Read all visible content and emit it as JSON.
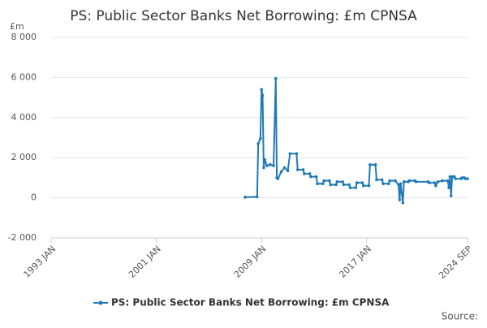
{
  "chart_data": {
    "type": "line",
    "title": "PS: Public Sector Banks Net Borrowing: £m CPNSA",
    "y_label": "£m",
    "source": "Source:",
    "x": [
      "2007 OCT",
      "2008 SEP",
      "2008 OCT",
      "2008 DEC",
      "2009 JAN",
      "2009 FEB",
      "2009 MAR",
      "2009 APR",
      "2009 JUN",
      "2009 SEP",
      "2009 DEC",
      "2010 FEB",
      "2010 MAR",
      "2010 APR",
      "2010 JUL",
      "2010 OCT",
      "2011 JAN",
      "2011 MAR",
      "2011 SEP",
      "2011 OCT",
      "2012 MAR",
      "2012 APR",
      "2012 SEP",
      "2012 OCT",
      "2013 MAR",
      "2013 APR",
      "2013 SEP",
      "2013 OCT",
      "2014 MAR",
      "2014 APR",
      "2014 SEP",
      "2014 OCT",
      "2015 MAR",
      "2015 APR",
      "2015 SEP",
      "2015 OCT",
      "2016 MAR",
      "2016 APR",
      "2016 SEP",
      "2016 OCT",
      "2017 MAR",
      "2017 APR",
      "2017 SEP",
      "2017 OCT",
      "2018 MAR",
      "2018 APR",
      "2018 SEP",
      "2018 OCT",
      "2019 MAR",
      "2019 JUN",
      "2019 JUL",
      "2019 AUG",
      "2019 OCT",
      "2019 NOV",
      "2020 MAR",
      "2020 APR",
      "2020 SEP",
      "2020 OCT",
      "2021 SEP",
      "2021 OCT",
      "2022 MAR",
      "2022 APR",
      "2022 JUN",
      "2022 OCT",
      "2023 MAR",
      "2023 APR",
      "2023 MAY",
      "2023 JUN",
      "2023 JUL",
      "2023 SEP",
      "2023 OCT",
      "2024 MAR",
      "2024 APR",
      "2024 JUN",
      "2024 JUL",
      "2024 SEP"
    ],
    "series": [
      {
        "name": "PS: Public Sector Banks Net Borrowing: £m CPNSA",
        "color": "#1f7ab8",
        "values": [
          30,
          50,
          2700,
          2950,
          5400,
          5100,
          1500,
          1900,
          1600,
          1650,
          1600,
          5950,
          1000,
          950,
          1300,
          1500,
          1350,
          2200,
          2200,
          1400,
          1400,
          1200,
          1200,
          1050,
          1050,
          700,
          700,
          850,
          850,
          650,
          650,
          800,
          800,
          650,
          650,
          500,
          500,
          750,
          750,
          600,
          600,
          1650,
          1650,
          900,
          900,
          700,
          700,
          850,
          850,
          650,
          -100,
          700,
          -250,
          800,
          800,
          850,
          850,
          800,
          800,
          750,
          750,
          600,
          800,
          850,
          850,
          500,
          1050,
          100,
          1050,
          1050,
          950,
          950,
          1000,
          1000,
          950,
          950
        ]
      }
    ],
    "xlim": [
      "1993 JAN",
      "2024 SEP"
    ],
    "xticks": [
      "1993 JAN",
      "2001 JAN",
      "2009 JAN",
      "2017 JAN",
      "2024 SEP"
    ],
    "ylim": [
      -2000,
      8000
    ],
    "yticks": [
      {
        "value": -2000,
        "label": "-2 000"
      },
      0,
      {
        "value": 2000,
        "label": "2 000"
      },
      {
        "value": 4000,
        "label": "4 000"
      },
      {
        "value": 6000,
        "label": "6 000"
      },
      {
        "value": 8000,
        "label": "8 000"
      }
    ],
    "grid": true
  }
}
